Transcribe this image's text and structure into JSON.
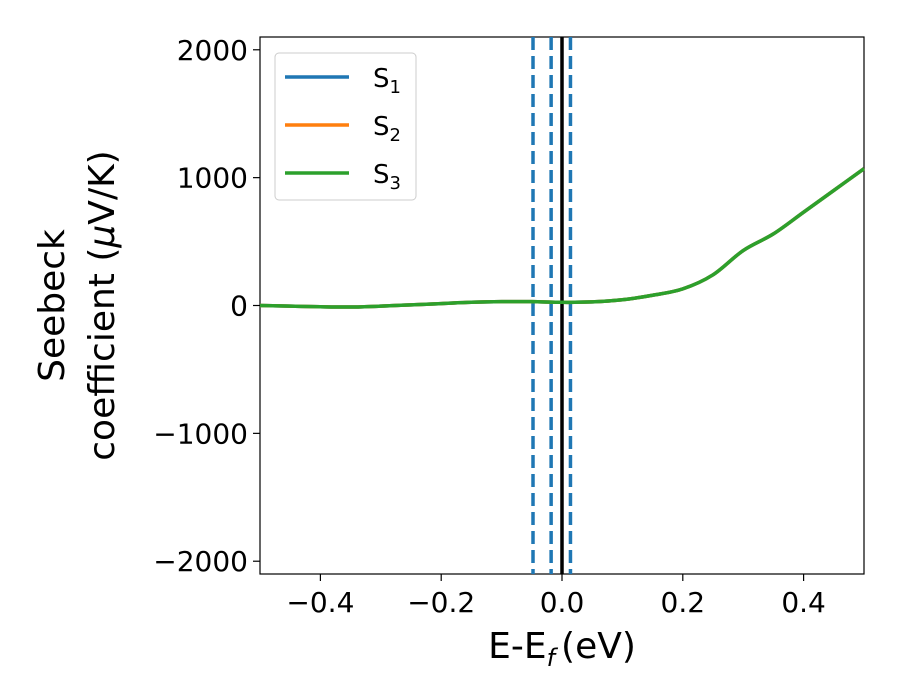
{
  "chart_data": {
    "type": "line",
    "xlabel": "E-E",
    "xlabel_sub": "f",
    "xlabel_unit": "(eV)",
    "ylabel_line1": "Seebeck",
    "ylabel_line2": "coefficient  (",
    "ylabel_mu": "μ",
    "ylabel_unit": "V/K)",
    "xlim": [
      -0.5,
      0.5
    ],
    "ylim": [
      -2100,
      2100
    ],
    "xticks": [
      -0.4,
      -0.2,
      0.0,
      0.2,
      0.4
    ],
    "xtick_labels": [
      "−0.4",
      "−0.2",
      "0.0",
      "0.2",
      "0.4"
    ],
    "yticks": [
      -2000,
      -1000,
      0,
      1000,
      2000
    ],
    "ytick_labels": [
      "−2000",
      "−1000",
      "0",
      "1000",
      "2000"
    ],
    "legend_position": "top-left",
    "series": [
      {
        "name": "S",
        "sub": "1",
        "color": "#1f77b4",
        "x": [
          -0.5,
          -0.45,
          -0.4,
          -0.35,
          -0.3,
          -0.25,
          -0.2,
          -0.15,
          -0.1,
          -0.05,
          0.0,
          0.05,
          0.1,
          0.15,
          0.2,
          0.25,
          0.3,
          0.35,
          0.4,
          0.45,
          0.5
        ],
        "y": [
          0,
          -5,
          -10,
          -12,
          -5,
          5,
          15,
          25,
          30,
          30,
          25,
          28,
          45,
          80,
          130,
          240,
          430,
          560,
          730,
          900,
          1070
        ]
      },
      {
        "name": "S",
        "sub": "2",
        "color": "#ff7f0e",
        "x": [
          -0.5,
          -0.45,
          -0.4,
          -0.35,
          -0.3,
          -0.25,
          -0.2,
          -0.15,
          -0.1,
          -0.05,
          0.0,
          0.05,
          0.1,
          0.15,
          0.2,
          0.25,
          0.3,
          0.35,
          0.4,
          0.45,
          0.5
        ],
        "y": [
          0,
          -5,
          -10,
          -12,
          -5,
          5,
          15,
          25,
          30,
          30,
          25,
          28,
          45,
          80,
          130,
          240,
          430,
          560,
          730,
          900,
          1070
        ]
      },
      {
        "name": "S",
        "sub": "3",
        "color": "#2ca02c",
        "x": [
          -0.5,
          -0.45,
          -0.4,
          -0.35,
          -0.3,
          -0.25,
          -0.2,
          -0.15,
          -0.1,
          -0.05,
          0.0,
          0.05,
          0.1,
          0.15,
          0.2,
          0.25,
          0.3,
          0.35,
          0.4,
          0.45,
          0.5
        ],
        "y": [
          0,
          -5,
          -10,
          -12,
          -5,
          5,
          15,
          25,
          30,
          30,
          25,
          28,
          45,
          80,
          130,
          240,
          430,
          560,
          730,
          900,
          1070
        ]
      }
    ],
    "vlines": [
      {
        "x": -0.048,
        "style": "dashed",
        "color": "#1f77b4"
      },
      {
        "x": -0.018,
        "style": "dashed",
        "color": "#1f77b4"
      },
      {
        "x": 0.0,
        "style": "solid",
        "color": "#000000"
      },
      {
        "x": 0.014,
        "style": "dashed",
        "color": "#1f77b4"
      }
    ]
  }
}
